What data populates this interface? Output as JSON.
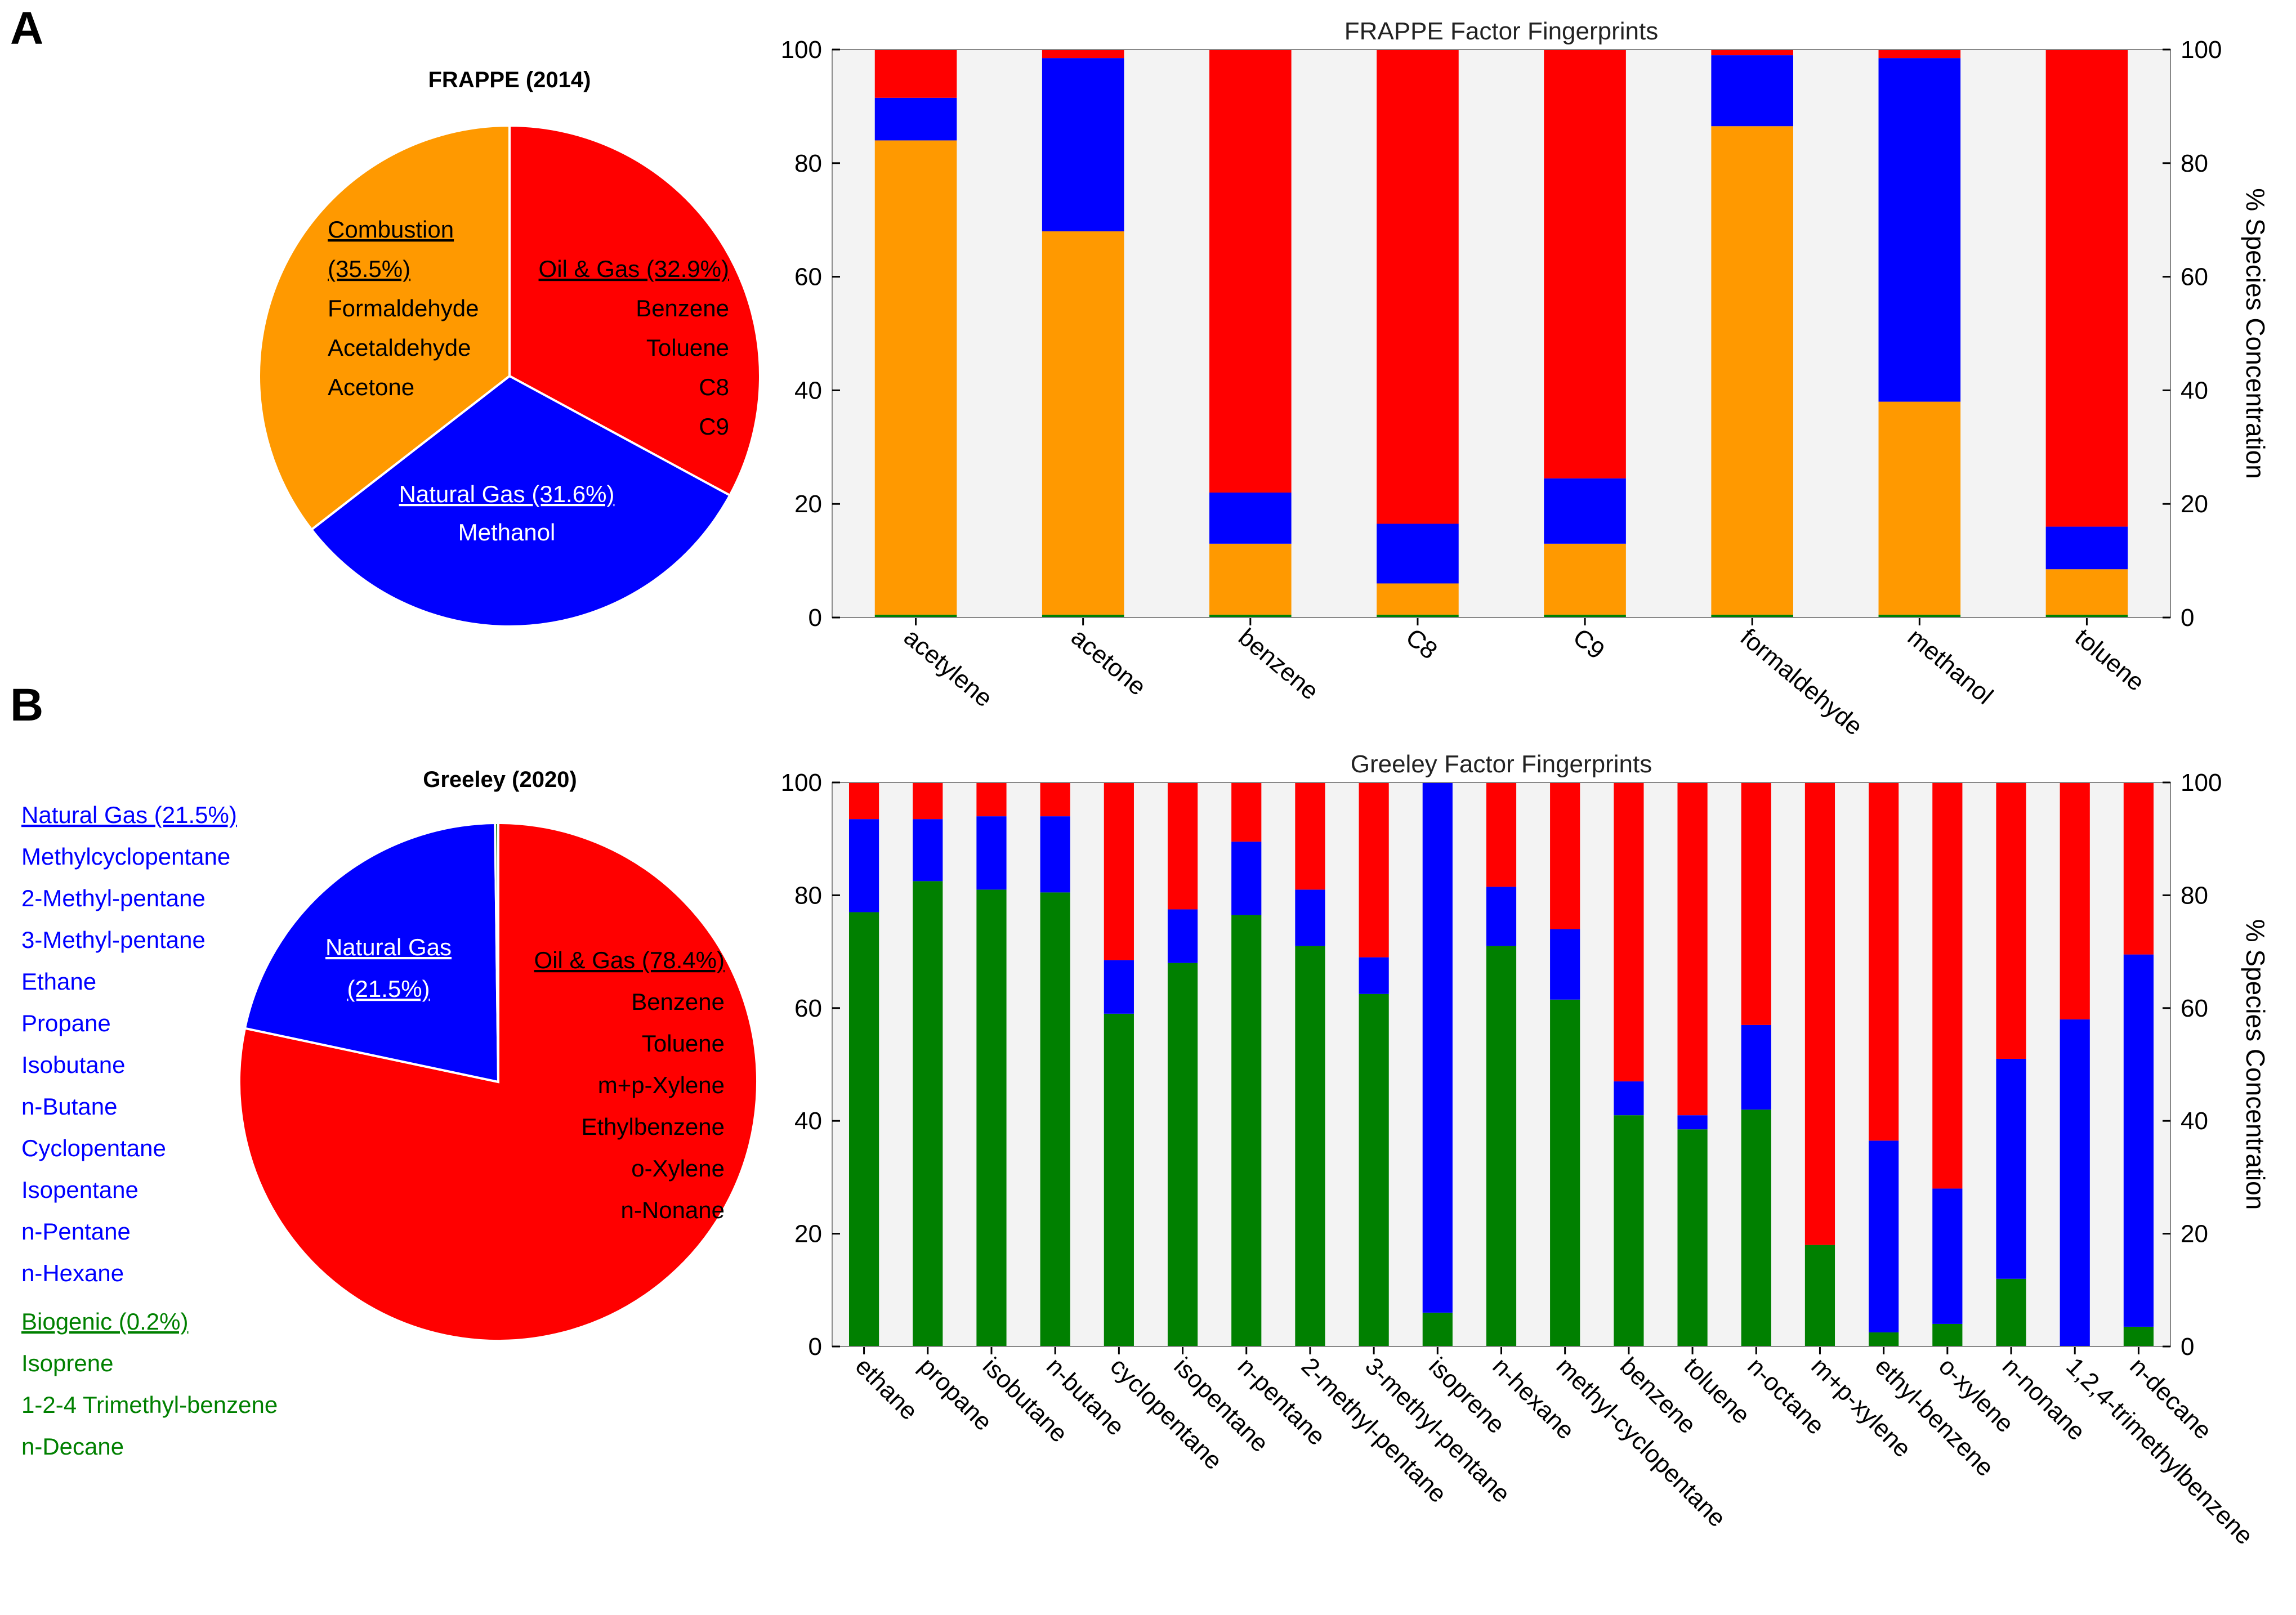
{
  "panels": [
    {
      "letter": "A"
    },
    {
      "letter": "B"
    }
  ],
  "colors": {
    "oil_gas": "#ff0000",
    "natural_gas": "#0000ff",
    "combustion": "#ff9900",
    "biogenic": "#008000",
    "plot_bg": "#f3f3f3"
  },
  "pies": [
    {
      "title": "FRAPPE (2014)",
      "slices": [
        {
          "name": "Oil & Gas",
          "percent": 32.9,
          "header": "Oil & Gas (32.9%)",
          "species": [
            "Benzene",
            "Toluene",
            "C8",
            "C9"
          ]
        },
        {
          "name": "Natural Gas",
          "percent": 31.6,
          "header": "Natural Gas (31.6%)",
          "species": [
            "Methanol"
          ]
        },
        {
          "name": "Combustion",
          "percent": 35.5,
          "header_lines": [
            "Combustion",
            "(35.5%)"
          ],
          "species": [
            "Formaldehyde",
            "Acetaldehyde",
            "Acetone"
          ]
        }
      ]
    },
    {
      "title": "Greeley (2020)",
      "slices": [
        {
          "name": "Oil & Gas",
          "percent": 78.4,
          "header": "Oil & Gas (78.4%)",
          "species": [
            "Benzene",
            "Toluene",
            "m+p-Xylene",
            "Ethylbenzene",
            "o-Xylene",
            "n-Nonane"
          ]
        },
        {
          "name": "Natural Gas",
          "percent": 21.5,
          "header_lines": [
            "Natural Gas",
            "(21.5%)"
          ]
        },
        {
          "name": "Biogenic",
          "percent": 0.2
        }
      ],
      "side_legend": {
        "natural_gas_header": "Natural Gas (21.5%)",
        "natural_gas_species": [
          "Methylcyclopentane",
          "2-Methyl-pentane",
          "3-Methyl-pentane",
          "Ethane",
          "Propane",
          "Isobutane",
          "n-Butane",
          "Cyclopentane",
          "Isopentane",
          "n-Pentane",
          "n-Hexane"
        ],
        "biogenic_header": "Biogenic (0.2%)",
        "biogenic_species": [
          "Isoprene",
          "1-2-4 Trimethyl-benzene",
          "n-Decane"
        ]
      }
    }
  ],
  "chart_data": [
    {
      "type": "bar",
      "stacked": true,
      "title": "FRAPPE Factor Fingerprints",
      "ylabel": "% Species Concentration",
      "ylim": [
        0,
        100
      ],
      "yticks": [
        0,
        20,
        40,
        60,
        80,
        100
      ],
      "categories": [
        "acetylene",
        "acetone",
        "benzene",
        "C8",
        "C9",
        "formaldehyde",
        "methanol",
        "toluene"
      ],
      "series": [
        {
          "name": "Biogenic",
          "color": "#008000",
          "values": [
            0.5,
            0.5,
            0.5,
            0.5,
            0.5,
            0.5,
            0.5,
            0.5
          ]
        },
        {
          "name": "Combustion",
          "color": "#ff9900",
          "values": [
            83.5,
            67.5,
            12.5,
            5.5,
            12.5,
            86,
            37.5,
            8
          ]
        },
        {
          "name": "Natural Gas",
          "color": "#0000ff",
          "values": [
            7.5,
            30.5,
            9,
            10.5,
            11.5,
            12.5,
            60.5,
            7.5
          ]
        },
        {
          "name": "Oil & Gas",
          "color": "#ff0000",
          "values": [
            8.5,
            1.5,
            78,
            83.5,
            75.5,
            1,
            1.5,
            84
          ]
        }
      ]
    },
    {
      "type": "bar",
      "stacked": true,
      "title": "Greeley Factor Fingerprints",
      "ylabel": "% Species Concentration",
      "ylim": [
        0,
        100
      ],
      "yticks": [
        0,
        20,
        40,
        60,
        80,
        100
      ],
      "categories": [
        "ethane",
        "propane",
        "isobutane",
        "n-butane",
        "cyclopentane",
        "isopentane",
        "n-pentane",
        "2-methyl-pentane",
        "3-methyl-pentane",
        "isoprene",
        "n-hexane",
        "methyl-cyclopentane",
        "benzene",
        "toluene",
        "n-octane",
        "m+p-xylene",
        "ethyl-benzene",
        "o-xylene",
        "n-nonane",
        "1,2,4-trimethylbenzene",
        "n-decane"
      ],
      "series": [
        {
          "name": "Biogenic",
          "color": "#008000",
          "values": [
            77,
            82.5,
            81,
            80.5,
            59,
            68,
            76.5,
            71,
            62.5,
            6,
            71,
            61.5,
            41,
            38.5,
            42,
            18,
            2.5,
            4,
            12,
            0,
            3.5
          ]
        },
        {
          "name": "Natural Gas",
          "color": "#0000ff",
          "values": [
            16.5,
            11,
            13,
            13.5,
            9.5,
            9.5,
            13,
            10,
            6.5,
            94,
            10.5,
            12.5,
            6,
            2.5,
            15,
            0,
            34,
            24,
            39,
            58,
            66
          ]
        },
        {
          "name": "Oil & Gas",
          "color": "#ff0000",
          "values": [
            6.5,
            6.5,
            6,
            6,
            31.5,
            22.5,
            10.5,
            19,
            31,
            0,
            18.5,
            26,
            53,
            59,
            43,
            82,
            63.5,
            72,
            49,
            42,
            30.5
          ]
        }
      ]
    }
  ]
}
